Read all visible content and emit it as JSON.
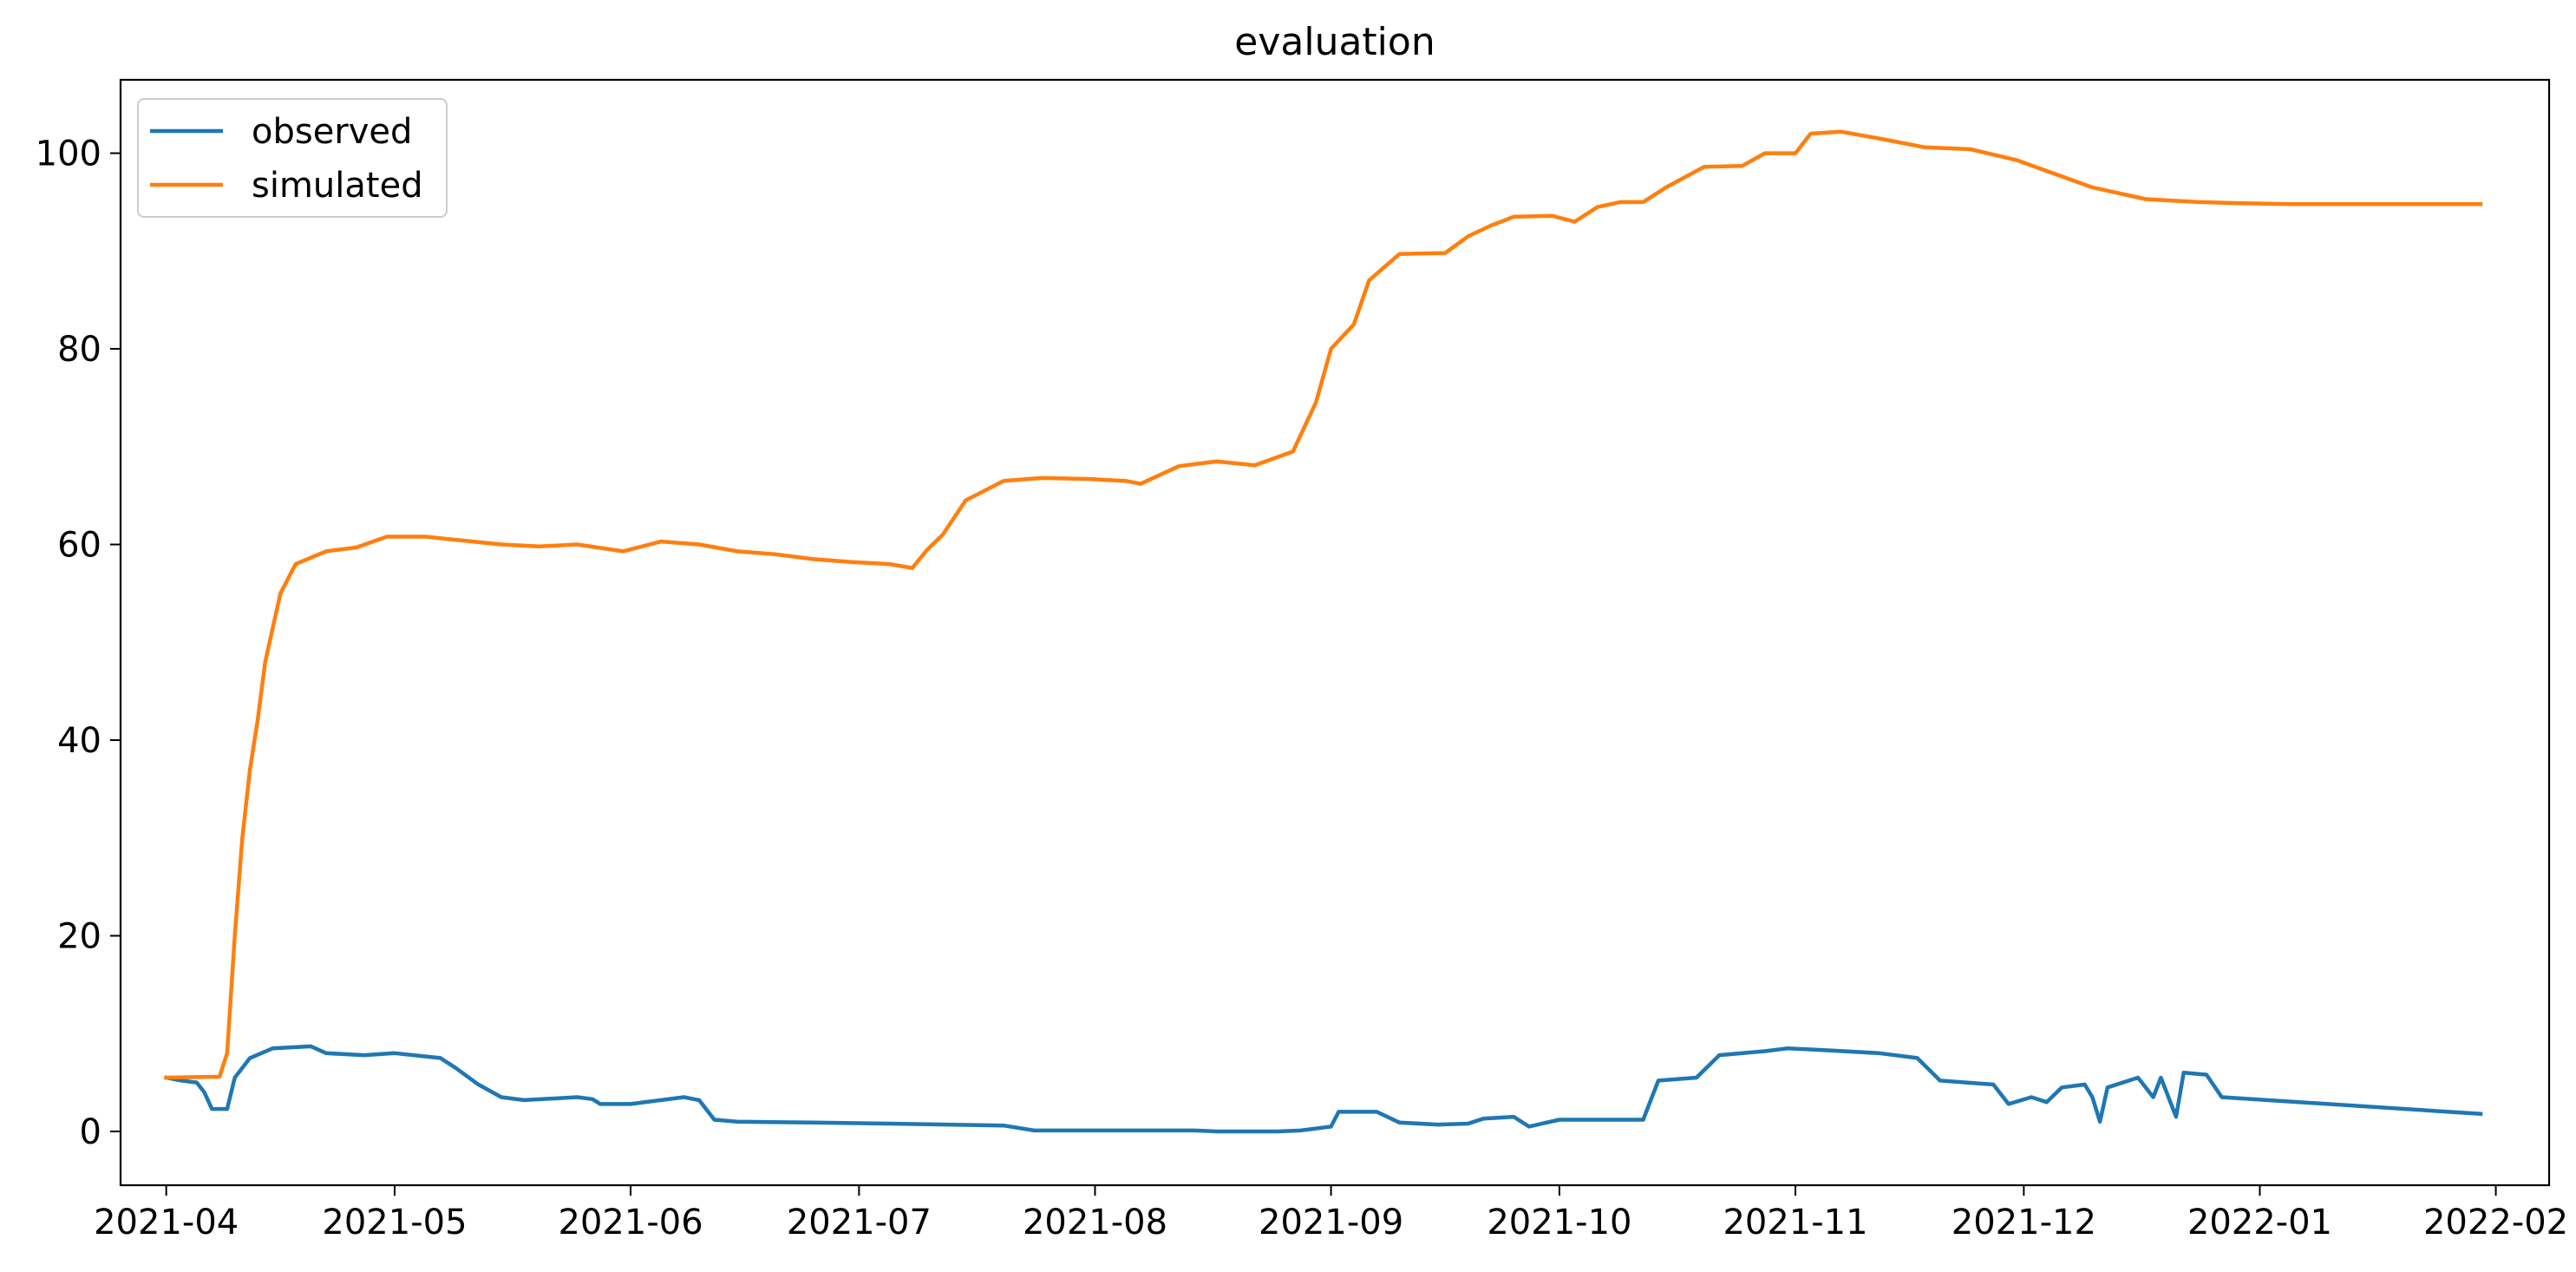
{
  "chart_data": {
    "type": "line",
    "title": "evaluation",
    "xlabel": "",
    "ylabel": "",
    "x_range": [
      "2021-03-26",
      "2022-02-08"
    ],
    "ylim": [
      -5.5,
      107.5
    ],
    "grid": false,
    "legend_position": "top-left",
    "x_ticks": [
      "2021-04",
      "2021-05",
      "2021-06",
      "2021-07",
      "2021-08",
      "2021-09",
      "2021-10",
      "2021-11",
      "2021-12",
      "2022-01",
      "2022-02"
    ],
    "y_ticks": [
      0,
      20,
      40,
      60,
      80,
      100
    ],
    "series": [
      {
        "name": "observed",
        "color": "#1f77b4",
        "points": [
          [
            "2021-04-01",
            5.5
          ],
          [
            "2021-04-03",
            5.2
          ],
          [
            "2021-04-05",
            5.0
          ],
          [
            "2021-04-06",
            4.0
          ],
          [
            "2021-04-07",
            2.3
          ],
          [
            "2021-04-09",
            2.3
          ],
          [
            "2021-04-10",
            5.5
          ],
          [
            "2021-04-12",
            7.5
          ],
          [
            "2021-04-15",
            8.5
          ],
          [
            "2021-04-20",
            8.7
          ],
          [
            "2021-04-22",
            8.0
          ],
          [
            "2021-04-27",
            7.8
          ],
          [
            "2021-05-01",
            8.0
          ],
          [
            "2021-05-07",
            7.5
          ],
          [
            "2021-05-09",
            6.5
          ],
          [
            "2021-05-12",
            4.8
          ],
          [
            "2021-05-15",
            3.5
          ],
          [
            "2021-05-18",
            3.2
          ],
          [
            "2021-05-25",
            3.5
          ],
          [
            "2021-05-27",
            3.3
          ],
          [
            "2021-05-28",
            2.8
          ],
          [
            "2021-06-01",
            2.8
          ],
          [
            "2021-06-08",
            3.5
          ],
          [
            "2021-06-10",
            3.2
          ],
          [
            "2021-06-12",
            1.2
          ],
          [
            "2021-06-15",
            1.0
          ],
          [
            "2021-06-25",
            0.9
          ],
          [
            "2021-07-05",
            0.8
          ],
          [
            "2021-07-20",
            0.6
          ],
          [
            "2021-07-24",
            0.1
          ],
          [
            "2021-08-03",
            0.1
          ],
          [
            "2021-08-14",
            0.1
          ],
          [
            "2021-08-17",
            0.0
          ],
          [
            "2021-08-25",
            0.0
          ],
          [
            "2021-08-28",
            0.1
          ],
          [
            "2021-09-01",
            0.5
          ],
          [
            "2021-09-02",
            2.0
          ],
          [
            "2021-09-07",
            2.0
          ],
          [
            "2021-09-10",
            0.9
          ],
          [
            "2021-09-15",
            0.7
          ],
          [
            "2021-09-19",
            0.8
          ],
          [
            "2021-09-21",
            1.3
          ],
          [
            "2021-09-25",
            1.5
          ],
          [
            "2021-09-27",
            0.5
          ],
          [
            "2021-10-01",
            1.2
          ],
          [
            "2021-10-12",
            1.2
          ],
          [
            "2021-10-14",
            5.2
          ],
          [
            "2021-10-19",
            5.5
          ],
          [
            "2021-10-22",
            7.8
          ],
          [
            "2021-10-28",
            8.2
          ],
          [
            "2021-10-31",
            8.5
          ],
          [
            "2021-11-05",
            8.3
          ],
          [
            "2021-11-12",
            8.0
          ],
          [
            "2021-11-17",
            7.5
          ],
          [
            "2021-11-20",
            5.2
          ],
          [
            "2021-11-27",
            4.8
          ],
          [
            "2021-11-29",
            2.8
          ],
          [
            "2021-12-02",
            3.5
          ],
          [
            "2021-12-04",
            3.0
          ],
          [
            "2021-12-06",
            4.5
          ],
          [
            "2021-12-09",
            4.8
          ],
          [
            "2021-12-10",
            3.5
          ],
          [
            "2021-12-11",
            1.0
          ],
          [
            "2021-12-12",
            4.5
          ],
          [
            "2021-12-16",
            5.5
          ],
          [
            "2021-12-18",
            3.5
          ],
          [
            "2021-12-19",
            5.5
          ],
          [
            "2021-12-21",
            1.5
          ],
          [
            "2021-12-22",
            6.0
          ],
          [
            "2021-12-25",
            5.8
          ],
          [
            "2021-12-27",
            3.5
          ],
          [
            "2022-01-28",
            1.9
          ],
          [
            "2022-01-30",
            1.8
          ]
        ]
      },
      {
        "name": "simulated",
        "color": "#ff7f0e",
        "points": [
          [
            "2021-04-01",
            5.5
          ],
          [
            "2021-04-08",
            5.6
          ],
          [
            "2021-04-09",
            8.0
          ],
          [
            "2021-04-10",
            20.0
          ],
          [
            "2021-04-11",
            30.0
          ],
          [
            "2021-04-12",
            37.0
          ],
          [
            "2021-04-13",
            42.0
          ],
          [
            "2021-04-14",
            48.0
          ],
          [
            "2021-04-16",
            55.0
          ],
          [
            "2021-04-18",
            58.0
          ],
          [
            "2021-04-22",
            59.3
          ],
          [
            "2021-04-26",
            59.7
          ],
          [
            "2021-04-30",
            60.8
          ],
          [
            "2021-05-05",
            60.8
          ],
          [
            "2021-05-10",
            60.4
          ],
          [
            "2021-05-15",
            60.0
          ],
          [
            "2021-05-20",
            59.8
          ],
          [
            "2021-05-25",
            60.0
          ],
          [
            "2021-05-31",
            59.3
          ],
          [
            "2021-06-05",
            60.3
          ],
          [
            "2021-06-10",
            60.0
          ],
          [
            "2021-06-15",
            59.3
          ],
          [
            "2021-06-20",
            59.0
          ],
          [
            "2021-06-25",
            58.5
          ],
          [
            "2021-06-30",
            58.2
          ],
          [
            "2021-07-05",
            58.0
          ],
          [
            "2021-07-08",
            57.6
          ],
          [
            "2021-07-10",
            59.5
          ],
          [
            "2021-07-12",
            61.0
          ],
          [
            "2021-07-15",
            64.5
          ],
          [
            "2021-07-20",
            66.5
          ],
          [
            "2021-07-25",
            66.8
          ],
          [
            "2021-07-31",
            66.7
          ],
          [
            "2021-08-05",
            66.5
          ],
          [
            "2021-08-07",
            66.2
          ],
          [
            "2021-08-12",
            68.0
          ],
          [
            "2021-08-17",
            68.5
          ],
          [
            "2021-08-22",
            68.1
          ],
          [
            "2021-08-27",
            69.5
          ],
          [
            "2021-08-30",
            74.5
          ],
          [
            "2021-09-01",
            80.0
          ],
          [
            "2021-09-04",
            82.5
          ],
          [
            "2021-09-06",
            87.0
          ],
          [
            "2021-09-10",
            89.7
          ],
          [
            "2021-09-16",
            89.8
          ],
          [
            "2021-09-19",
            91.5
          ],
          [
            "2021-09-22",
            92.6
          ],
          [
            "2021-09-25",
            93.5
          ],
          [
            "2021-09-30",
            93.6
          ],
          [
            "2021-10-03",
            93.0
          ],
          [
            "2021-10-06",
            94.5
          ],
          [
            "2021-10-09",
            95.0
          ],
          [
            "2021-10-12",
            95.0
          ],
          [
            "2021-10-15",
            96.5
          ],
          [
            "2021-10-20",
            98.6
          ],
          [
            "2021-10-25",
            98.7
          ],
          [
            "2021-10-28",
            100.0
          ],
          [
            "2021-11-01",
            100.0
          ],
          [
            "2021-11-03",
            102.0
          ],
          [
            "2021-11-07",
            102.2
          ],
          [
            "2021-11-12",
            101.5
          ],
          [
            "2021-11-18",
            100.6
          ],
          [
            "2021-11-24",
            100.4
          ],
          [
            "2021-11-30",
            99.3
          ],
          [
            "2021-12-10",
            96.5
          ],
          [
            "2021-12-17",
            95.3
          ],
          [
            "2021-12-24",
            95.0
          ],
          [
            "2021-12-29",
            94.9
          ],
          [
            "2022-01-05",
            94.8
          ],
          [
            "2022-01-30",
            94.8
          ]
        ]
      }
    ]
  }
}
